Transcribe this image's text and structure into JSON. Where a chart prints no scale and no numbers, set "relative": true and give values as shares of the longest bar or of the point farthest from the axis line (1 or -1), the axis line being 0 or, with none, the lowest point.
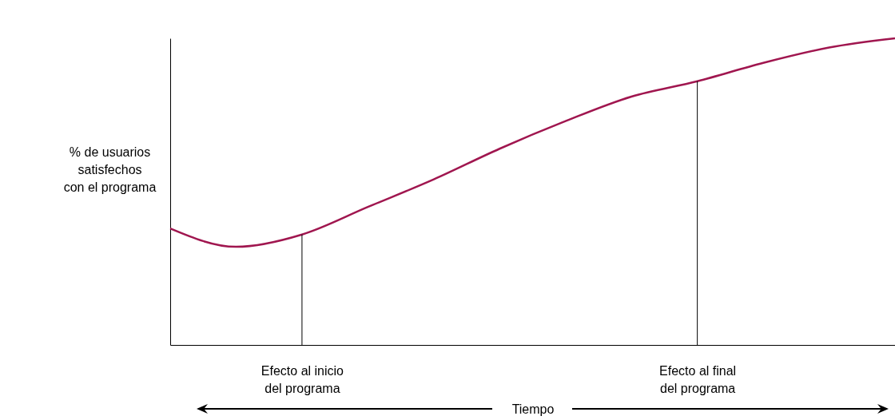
{
  "chart_data": {
    "type": "line",
    "relative": true,
    "xlabel": "Tiempo",
    "ylabel": "% de usuarios satisfechos con el programa",
    "categories": [
      null,
      null,
      "Efecto al inicio del programa",
      null,
      null,
      null,
      null,
      null,
      "Efecto al final del programa",
      null,
      null,
      null
    ],
    "series": [
      {
        "color": "#a0164f",
        "values": [
          0.38,
          0.32,
          0.36,
          0.45,
          0.54,
          0.64,
          0.73,
          0.81,
          0.86,
          0.92,
          0.97,
          1.0
        ]
      }
    ],
    "ref_lines": [
      {
        "axis": "x",
        "value": "Efecto al inicio del programa",
        "color": "#000000"
      },
      {
        "axis": "x",
        "value": "Efecto al final del programa",
        "color": "#000000"
      }
    ],
    "grid": false,
    "marker": "none",
    "line_style": "solid"
  }
}
